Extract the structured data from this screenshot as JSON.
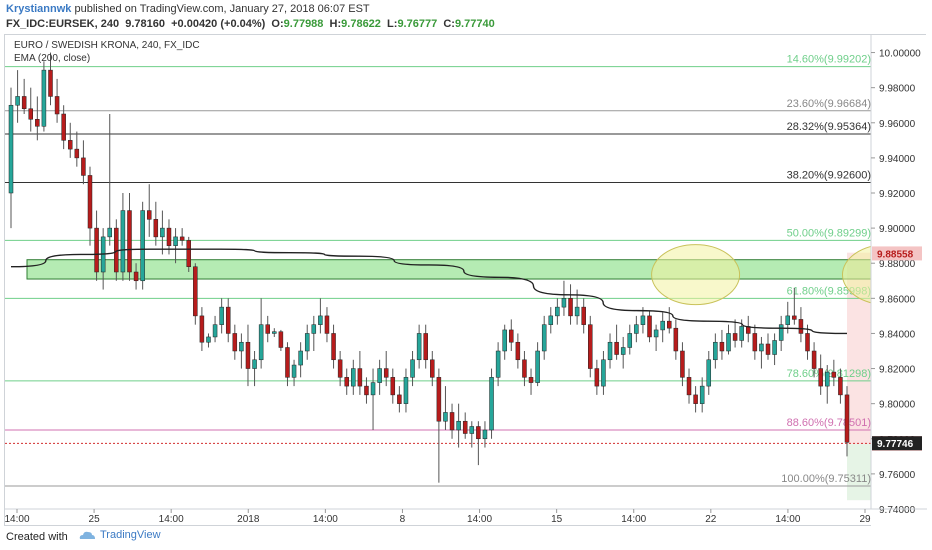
{
  "header": {
    "author": "Krystiannwk",
    "published": "published on TradingView.com, January 27, 2018 06:07 EST",
    "symbol": "FX_IDC:EURSEK, 240",
    "price": "9.78160",
    "change": "+0.00420 (+0.04%)",
    "o_label": "O:",
    "o_value": "9.77988",
    "h_label": "H:",
    "h_value": "9.78622",
    "l_label": "L:",
    "l_value": "9.76777",
    "c_label": "C:",
    "c_value": "9.77740"
  },
  "legend": {
    "title": "EURO / SWEDISH KRONA, 240, FX_IDC",
    "indicator": "EMA (200, close)"
  },
  "footer": {
    "created_with": "Created with",
    "brand": "TradingView"
  },
  "colors": {
    "up": "#26a69a",
    "down": "#b71c1c",
    "ema": "#222222",
    "zone": "#8ee08a",
    "ellipse": "#f2f2a0",
    "fib_green": "#6fcf8a",
    "fib_black": "#333333",
    "fib_pink": "#d070b0"
  },
  "chart_data": {
    "type": "candlestick",
    "ylim": [
      9.74,
      10.01
    ],
    "y_ticks": [
      "10.00000",
      "9.98000",
      "9.96000",
      "9.94000",
      "9.92000",
      "9.90000",
      "9.88000",
      "9.86000",
      "9.84000",
      "9.82000",
      "9.80000",
      "9.78000",
      "9.76000",
      "9.74000"
    ],
    "x_ticks": [
      "14:00",
      "25",
      "14:00",
      "2018",
      "14:00",
      "8",
      "14:00",
      "15",
      "14:00",
      "22",
      "14:00",
      "29"
    ],
    "fib_levels": [
      {
        "label": "14.60%(9.99202)",
        "value": 9.99202,
        "color": "green"
      },
      {
        "label": "23.60%(9.96684)",
        "value": 9.96684,
        "color": "grey"
      },
      {
        "label": "28.32%(9.95364)",
        "value": 9.95364,
        "color": "black"
      },
      {
        "label": "38.20%(9.92600)",
        "value": 9.926,
        "color": "black"
      },
      {
        "label": "50.00%(9.89299)",
        "value": 9.89299,
        "color": "green"
      },
      {
        "label": "61.80%(9.85998)",
        "value": 9.85998,
        "color": "green"
      },
      {
        "label": "78.60%(9.81298)",
        "value": 9.81298,
        "color": "green"
      },
      {
        "label": "88.60%(9.78501)",
        "value": 9.78501,
        "color": "pink"
      },
      {
        "label": "100.00%(9.75311)",
        "value": 9.75311,
        "color": "grey"
      }
    ],
    "current_line": 9.7774,
    "price_tags": [
      {
        "label": "9.88558",
        "value": 9.88558,
        "color": "#f4c4c4",
        "text": "#b71c1c"
      },
      {
        "label": "9.77740",
        "value": 9.7774,
        "color": "#d32f2f",
        "text": "#ffffff"
      },
      {
        "label": "9.77746",
        "value": 9.77746,
        "color": "#222222",
        "text": "#ffffff"
      }
    ],
    "zone": {
      "top": 9.882,
      "bottom": 9.871
    },
    "ellipses": [
      {
        "center_price": 9.8735,
        "center_index": 104
      },
      {
        "center_price": 9.8735,
        "center_index": 133
      }
    ],
    "ema": [
      9.878,
      9.885,
      9.888,
      9.888,
      9.886,
      9.884,
      9.879,
      9.872,
      9.862,
      9.853,
      9.847,
      9.843,
      9.84
    ],
    "candles": [
      [
        9.92,
        9.98,
        9.9,
        9.97
      ],
      [
        9.97,
        9.99,
        9.96,
        9.975
      ],
      [
        9.975,
        9.985,
        9.965,
        9.968
      ],
      [
        9.968,
        9.98,
        9.955,
        9.962
      ],
      [
        9.962,
        9.975,
        9.95,
        9.958
      ],
      [
        9.958,
        9.995,
        9.955,
        9.99
      ],
      [
        9.99,
        10.0,
        9.97,
        9.975
      ],
      [
        9.975,
        9.985,
        9.96,
        9.965
      ],
      [
        9.965,
        9.97,
        9.945,
        9.95
      ],
      [
        9.95,
        9.96,
        9.94,
        9.945
      ],
      [
        9.945,
        9.955,
        9.935,
        9.94
      ],
      [
        9.94,
        9.95,
        9.925,
        9.93
      ],
      [
        9.93,
        9.935,
        9.89,
        9.9
      ],
      [
        9.9,
        9.91,
        9.87,
        9.875
      ],
      [
        9.875,
        9.9,
        9.865,
        9.895
      ],
      [
        9.895,
        9.965,
        9.89,
        9.9
      ],
      [
        9.9,
        9.905,
        9.87,
        9.875
      ],
      [
        9.875,
        9.92,
        9.87,
        9.91
      ],
      [
        9.91,
        9.92,
        9.87,
        9.875
      ],
      [
        9.875,
        9.88,
        9.865,
        9.87
      ],
      [
        9.87,
        9.915,
        9.865,
        9.91
      ],
      [
        9.91,
        9.925,
        9.895,
        9.905
      ],
      [
        9.905,
        9.915,
        9.89,
        9.895
      ],
      [
        9.895,
        9.91,
        9.885,
        9.9
      ],
      [
        9.9,
        9.905,
        9.885,
        9.89
      ],
      [
        9.89,
        9.9,
        9.88,
        9.895
      ],
      [
        9.895,
        9.9,
        9.89,
        9.893
      ],
      [
        9.893,
        9.895,
        9.875,
        9.878
      ],
      [
        9.878,
        9.88,
        9.845,
        9.85
      ],
      [
        9.85,
        9.855,
        9.83,
        9.835
      ],
      [
        9.835,
        9.84,
        9.832,
        9.838
      ],
      [
        9.838,
        9.85,
        9.835,
        9.845
      ],
      [
        9.845,
        9.86,
        9.84,
        9.855
      ],
      [
        9.855,
        9.86,
        9.835,
        9.84
      ],
      [
        9.84,
        9.845,
        9.825,
        9.83
      ],
      [
        9.83,
        9.84,
        9.82,
        9.835
      ],
      [
        9.835,
        9.845,
        9.81,
        9.82
      ],
      [
        9.82,
        9.83,
        9.81,
        9.825
      ],
      [
        9.825,
        9.86,
        9.82,
        9.845
      ],
      [
        9.845,
        9.85,
        9.835,
        9.84
      ],
      [
        9.84,
        9.843,
        9.838,
        9.841
      ],
      [
        9.841,
        9.842,
        9.83,
        9.832
      ],
      [
        9.832,
        9.835,
        9.81,
        9.815
      ],
      [
        9.815,
        9.825,
        9.81,
        9.822
      ],
      [
        9.822,
        9.835,
        9.815,
        9.83
      ],
      [
        9.83,
        9.845,
        9.825,
        9.84
      ],
      [
        9.84,
        9.85,
        9.83,
        9.845
      ],
      [
        9.845,
        9.86,
        9.84,
        9.85
      ],
      [
        9.85,
        9.855,
        9.835,
        9.84
      ],
      [
        9.84,
        9.845,
        9.82,
        9.825
      ],
      [
        9.825,
        9.83,
        9.81,
        9.815
      ],
      [
        9.815,
        9.82,
        9.805,
        9.81
      ],
      [
        9.81,
        9.825,
        9.805,
        9.82
      ],
      [
        9.82,
        9.83,
        9.805,
        9.81
      ],
      [
        9.81,
        9.815,
        9.8,
        9.805
      ],
      [
        9.805,
        9.82,
        9.785,
        9.812
      ],
      [
        9.812,
        9.825,
        9.805,
        9.82
      ],
      [
        9.82,
        9.83,
        9.81,
        9.815
      ],
      [
        9.815,
        9.82,
        9.8,
        9.805
      ],
      [
        9.805,
        9.81,
        9.795,
        9.8
      ],
      [
        9.8,
        9.82,
        9.795,
        9.815
      ],
      [
        9.815,
        9.83,
        9.81,
        9.825
      ],
      [
        9.825,
        9.845,
        9.82,
        9.84
      ],
      [
        9.84,
        9.845,
        9.82,
        9.825
      ],
      [
        9.825,
        9.83,
        9.81,
        9.815
      ],
      [
        9.815,
        9.82,
        9.755,
        9.79
      ],
      [
        9.79,
        9.81,
        9.785,
        9.795
      ],
      [
        9.795,
        9.8,
        9.78,
        9.785
      ],
      [
        9.785,
        9.8,
        9.775,
        9.79
      ],
      [
        9.79,
        9.795,
        9.78,
        9.783
      ],
      [
        9.783,
        9.79,
        9.775,
        9.787
      ],
      [
        9.787,
        9.79,
        9.765,
        9.78
      ],
      [
        9.78,
        9.79,
        9.775,
        9.785
      ],
      [
        9.785,
        9.82,
        9.78,
        9.815
      ],
      [
        9.815,
        9.835,
        9.81,
        9.83
      ],
      [
        9.83,
        9.845,
        9.825,
        9.842
      ],
      [
        9.842,
        9.848,
        9.83,
        9.835
      ],
      [
        9.835,
        9.84,
        9.82,
        9.825
      ],
      [
        9.825,
        9.83,
        9.81,
        9.815
      ],
      [
        9.815,
        9.82,
        9.805,
        9.812
      ],
      [
        9.812,
        9.835,
        9.81,
        9.83
      ],
      [
        9.83,
        9.85,
        9.825,
        9.845
      ],
      [
        9.845,
        9.855,
        9.84,
        9.85
      ],
      [
        9.85,
        9.86,
        9.845,
        9.855
      ],
      [
        9.855,
        9.87,
        9.85,
        9.86
      ],
      [
        9.86,
        9.868,
        9.845,
        9.85
      ],
      [
        9.85,
        9.865,
        9.845,
        9.855
      ],
      [
        9.855,
        9.86,
        9.84,
        9.845
      ],
      [
        9.845,
        9.85,
        9.815,
        9.82
      ],
      [
        9.82,
        9.825,
        9.805,
        9.81
      ],
      [
        9.81,
        9.83,
        9.805,
        9.825
      ],
      [
        9.825,
        9.84,
        9.82,
        9.835
      ],
      [
        9.835,
        9.845,
        9.825,
        9.828
      ],
      [
        9.828,
        9.838,
        9.82,
        9.832
      ],
      [
        9.832,
        9.845,
        9.828,
        9.84
      ],
      [
        9.84,
        9.85,
        9.835,
        9.845
      ],
      [
        9.845,
        9.855,
        9.84,
        9.85
      ],
      [
        9.85,
        9.853,
        9.835,
        9.838
      ],
      [
        9.838,
        9.845,
        9.83,
        9.842
      ],
      [
        9.842,
        9.852,
        9.835,
        9.847
      ],
      [
        9.847,
        9.855,
        9.84,
        9.843
      ],
      [
        9.843,
        9.848,
        9.825,
        9.83
      ],
      [
        9.83,
        9.835,
        9.81,
        9.815
      ],
      [
        9.815,
        9.82,
        9.8,
        9.805
      ],
      [
        9.805,
        9.81,
        9.795,
        9.8
      ],
      [
        9.8,
        9.815,
        9.795,
        9.81
      ],
      [
        9.81,
        9.83,
        9.805,
        9.825
      ],
      [
        9.825,
        9.84,
        9.82,
        9.835
      ],
      [
        9.835,
        9.842,
        9.825,
        9.83
      ],
      [
        9.83,
        9.845,
        9.828,
        9.84
      ],
      [
        9.84,
        9.848,
        9.832,
        9.836
      ],
      [
        9.836,
        9.848,
        9.832,
        9.844
      ],
      [
        9.844,
        9.85,
        9.835,
        9.84
      ],
      [
        9.84,
        9.845,
        9.825,
        9.83
      ],
      [
        9.83,
        9.838,
        9.82,
        9.834
      ],
      [
        9.834,
        9.84,
        9.825,
        9.828
      ],
      [
        9.828,
        9.84,
        9.822,
        9.836
      ],
      [
        9.836,
        9.85,
        9.83,
        9.845
      ],
      [
        9.845,
        9.858,
        9.84,
        9.85
      ],
      [
        9.85,
        9.866,
        9.845,
        9.848
      ],
      [
        9.848,
        9.855,
        9.835,
        9.84
      ],
      [
        9.84,
        9.845,
        9.825,
        9.83
      ],
      [
        9.83,
        9.835,
        9.815,
        9.82
      ],
      [
        9.82,
        9.828,
        9.805,
        9.81
      ],
      [
        9.81,
        9.822,
        9.8,
        9.818
      ],
      [
        9.818,
        9.825,
        9.81,
        9.815
      ],
      [
        9.815,
        9.82,
        9.8,
        9.805
      ],
      [
        9.805,
        9.81,
        9.77,
        9.778
      ]
    ]
  }
}
